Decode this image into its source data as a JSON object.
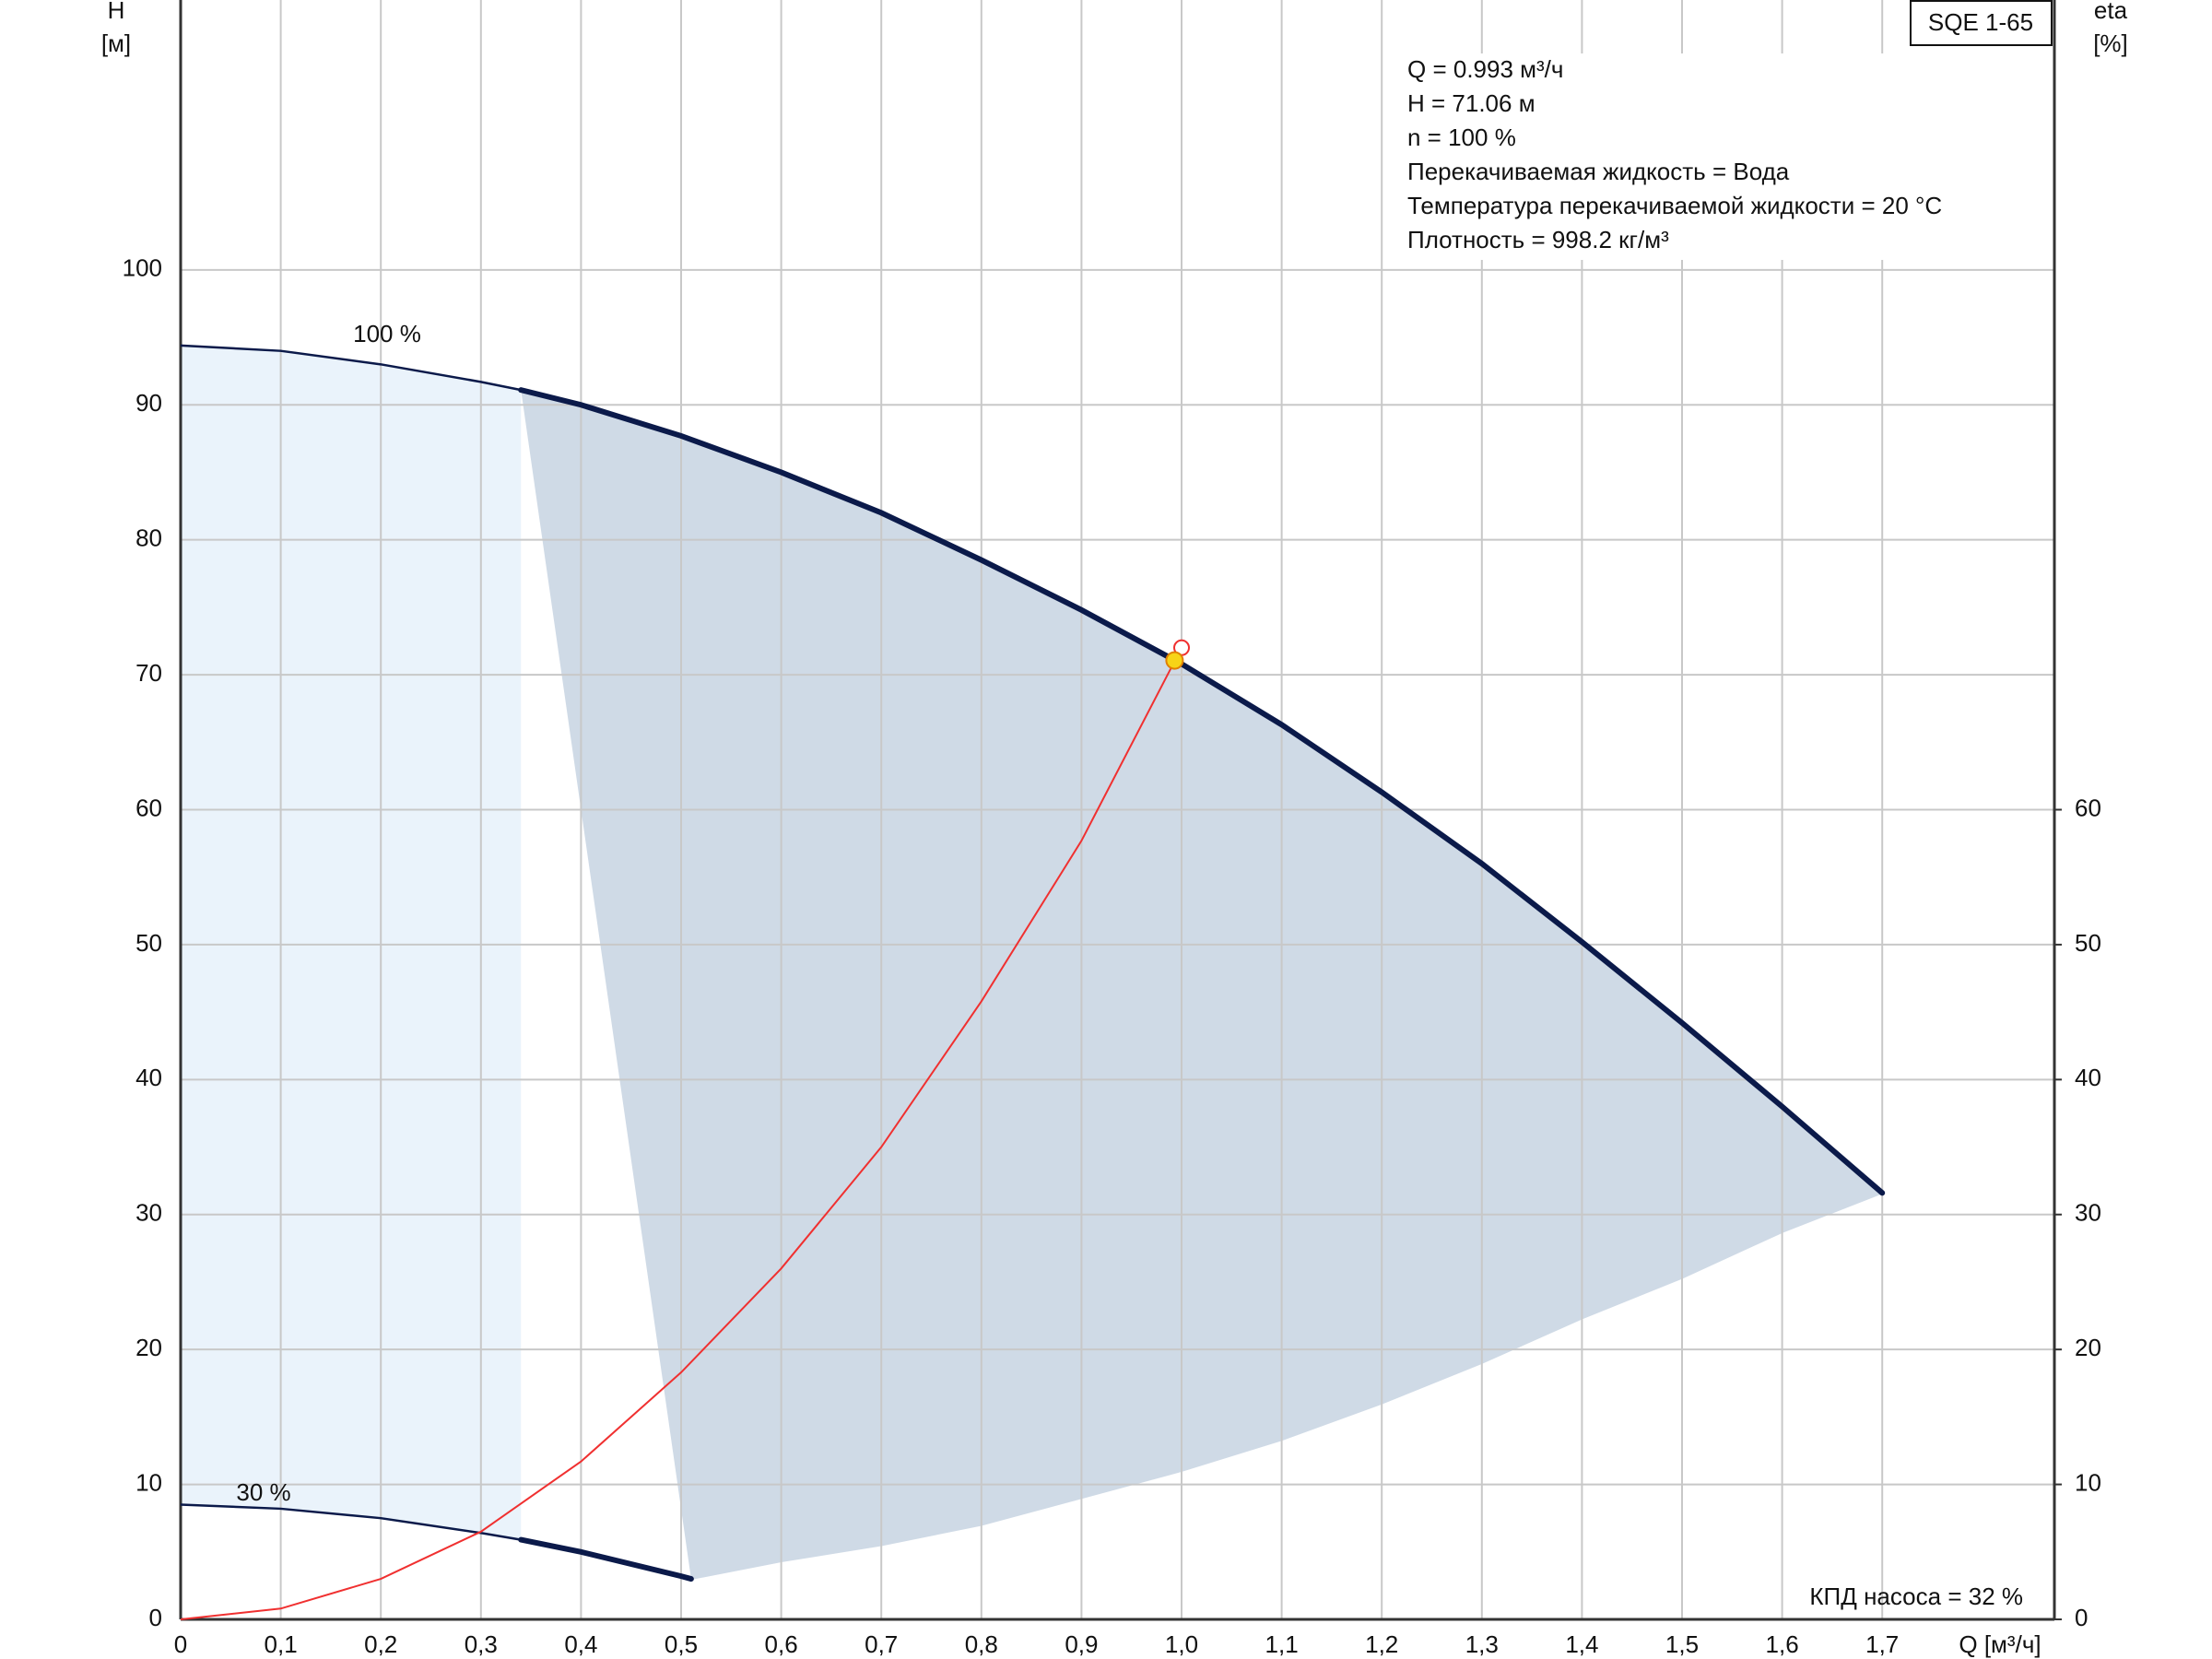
{
  "chart_data": {
    "type": "line",
    "title": "SQE 1-65",
    "x_label": "Q [м³/ч]",
    "y_label": "H",
    "y_unit": "[м]",
    "y2_label": "eta",
    "y2_unit": "[%]",
    "info": [
      "Q = 0.993 м³/ч",
      "H = 71.06 м",
      "n = 100 %",
      "Перекачиваемая жидкость = Вода",
      "Температура перекачиваемой жидкости = 20 °C",
      "Плотность = 998.2 кг/м³"
    ],
    "note": "КПД насоса = 32 %",
    "xlim": [
      0,
      1.872
    ],
    "ylim": [
      0,
      120
    ],
    "y2lim": [
      0,
      120
    ],
    "xticks": [
      0,
      {
        "value": 0.1,
        "label": "0,1"
      },
      {
        "value": 0.2,
        "label": "0,2"
      },
      {
        "value": 0.3,
        "label": "0,3"
      },
      {
        "value": 0.4,
        "label": "0,4"
      },
      {
        "value": 0.5,
        "label": "0,5"
      },
      {
        "value": 0.6,
        "label": "0,6"
      },
      {
        "value": 0.7,
        "label": "0,7"
      },
      {
        "value": 0.8,
        "label": "0,8"
      },
      {
        "value": 0.9,
        "label": "0,9"
      },
      {
        "value": 1.0,
        "label": "1,0"
      },
      {
        "value": 1.1,
        "label": "1,1"
      },
      {
        "value": 1.2,
        "label": "1,2"
      },
      {
        "value": 1.3,
        "label": "1,3"
      },
      {
        "value": 1.4,
        "label": "1,4"
      },
      {
        "value": 1.5,
        "label": "1,5"
      },
      {
        "value": 1.6,
        "label": "1,6"
      },
      {
        "value": 1.7,
        "label": "1,7"
      }
    ],
    "yticks": [
      0,
      10,
      20,
      30,
      40,
      50,
      60,
      70,
      80,
      90,
      100
    ],
    "y2ticks": [
      0,
      10,
      20,
      30,
      40,
      50,
      60
    ],
    "grid": true,
    "series": [
      {
        "name": "100 %",
        "color": "#0b1a4a",
        "x": [
          0,
          0.1,
          0.2,
          0.3,
          0.34,
          0.4,
          0.5,
          0.6,
          0.7,
          0.8,
          0.9,
          1.0,
          1.1,
          1.2,
          1.3,
          1.4,
          1.5,
          1.6,
          1.7
        ],
        "values": [
          94.4,
          94,
          93,
          91.7,
          91.1,
          90,
          87.7,
          85,
          82,
          78.5,
          74.8,
          70.8,
          66.3,
          61.3,
          56,
          50.2,
          44.2,
          38,
          31.6
        ]
      },
      {
        "name": "30 %",
        "color": "#0b1a4a",
        "x": [
          0,
          0.1,
          0.2,
          0.3,
          0.34,
          0.4,
          0.5,
          0.51
        ],
        "values": [
          8.5,
          8.2,
          7.5,
          6.4,
          5.9,
          5,
          3.2,
          3.0
        ]
      },
      {
        "color": "#f03030",
        "axis": "y2",
        "x": [
          0,
          0.1,
          0.2,
          0.3,
          0.4,
          0.5,
          0.6,
          0.7,
          0.8,
          0.9,
          0.993
        ],
        "values": [
          0,
          0.8,
          3,
          6.5,
          11.7,
          18.3,
          26,
          35,
          45.8,
          57.7,
          71
        ]
      }
    ],
    "operating_range_from": 0.34,
    "shaded_region": {
      "x": [
        0.51,
        0.6,
        0.7,
        0.8,
        0.9,
        1.0,
        1.1,
        1.2,
        1.3,
        1.4,
        1.5,
        1.6,
        1.7
      ],
      "lower": [
        3.0,
        4.3,
        5.5,
        7.0,
        9.0,
        11.0,
        13.3,
        16,
        19,
        22.3,
        25.3,
        28.7,
        31.6
      ]
    },
    "operating_point": {
      "x": 0.993,
      "y": 71.06
    },
    "requested_point": {
      "x": 1.0,
      "y": 72
    }
  }
}
